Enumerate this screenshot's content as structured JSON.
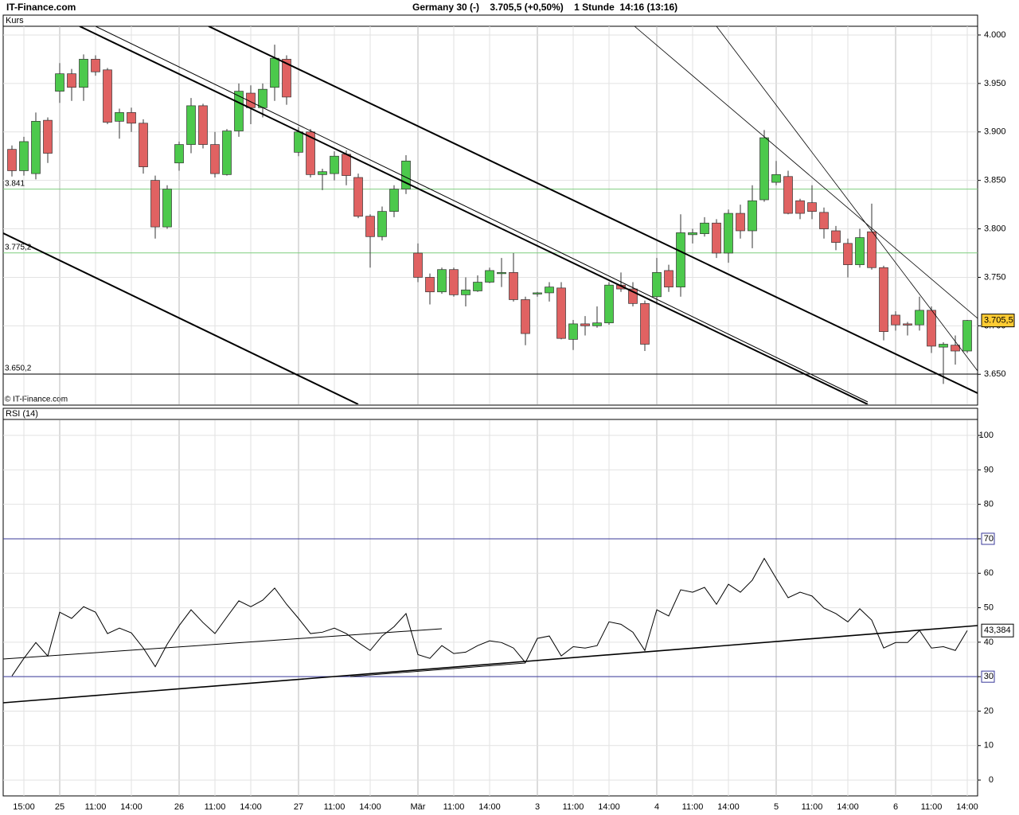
{
  "header": {
    "site": "IT-Finance.com",
    "info": "Germany 30 (-)    3.705,5 (+0,50%)    1 Stunde  14:16 (13:16)"
  },
  "chart_data": [
    {
      "type": "candlestick",
      "title": "Kurs",
      "watermark": "© IT-Finance.com",
      "up_color": "#4cc94c",
      "down_color": "#e06262",
      "open": [
        3882,
        3860,
        3857,
        3912,
        3942,
        3960,
        3946,
        3975,
        3964,
        3911,
        3920,
        3909,
        3850,
        3802,
        3868,
        3887,
        3927,
        3887,
        3856,
        3901,
        3940,
        3925,
        3946,
        3975,
        3879,
        3900,
        3856,
        3857,
        3877,
        3853,
        3813,
        3792,
        3818,
        3841,
        3775,
        3750,
        3735,
        3758,
        3732,
        3736,
        3745,
        3754,
        3755,
        3727,
        3733,
        3734,
        3739,
        3686,
        3702,
        3700,
        3703,
        3742,
        3738,
        3723,
        3730,
        3757,
        3740,
        3794,
        3795,
        3806,
        3775,
        3816,
        3798,
        3830,
        3848,
        3854,
        3829,
        3827,
        3817,
        3798,
        3785,
        3763,
        3797,
        3760,
        3711,
        3702,
        3701,
        3716,
        3678,
        3680,
        3674
      ],
      "high": [
        3886,
        3895,
        3920,
        3915,
        3971,
        3965,
        3980,
        3979,
        3966,
        3924,
        3925,
        3913,
        3855,
        3845,
        3890,
        3935,
        3929,
        3900,
        3903,
        3950,
        3948,
        3950,
        3990,
        3979,
        3905,
        3903,
        3862,
        3880,
        3881,
        3857,
        3815,
        3823,
        3845,
        3876,
        3785,
        3754,
        3760,
        3760,
        3750,
        3752,
        3760,
        3770,
        3775,
        3730,
        3735,
        3745,
        3745,
        3706,
        3710,
        3720,
        3745,
        3755,
        3745,
        3726,
        3770,
        3763,
        3815,
        3800,
        3812,
        3810,
        3820,
        3825,
        3845,
        3902,
        3870,
        3860,
        3831,
        3845,
        3822,
        3803,
        3790,
        3800,
        3826,
        3762,
        3715,
        3704,
        3730,
        3720,
        3683,
        3690,
        3706
      ],
      "low": [
        3854,
        3855,
        3851,
        3868,
        3930,
        3932,
        3932,
        3958,
        3908,
        3893,
        3900,
        3857,
        3790,
        3800,
        3860,
        3878,
        3883,
        3853,
        3855,
        3895,
        3908,
        3915,
        3932,
        3928,
        3875,
        3853,
        3840,
        3850,
        3845,
        3811,
        3760,
        3788,
        3812,
        3836,
        3745,
        3722,
        3733,
        3730,
        3720,
        3735,
        3744,
        3740,
        3725,
        3680,
        3730,
        3725,
        3686,
        3675,
        3690,
        3698,
        3701,
        3735,
        3720,
        3674,
        3722,
        3735,
        3730,
        3785,
        3792,
        3770,
        3765,
        3790,
        3780,
        3828,
        3845,
        3815,
        3810,
        3810,
        3790,
        3778,
        3750,
        3760,
        3758,
        3685,
        3695,
        3690,
        3695,
        3672,
        3640,
        3660,
        3672
      ],
      "close": [
        3860,
        3890,
        3911,
        3878,
        3960,
        3946,
        3975,
        3962,
        3910,
        3920,
        3909,
        3864,
        3802,
        3841,
        3887,
        3927,
        3887,
        3857,
        3901,
        3942,
        3925,
        3944,
        3976,
        3936,
        3900,
        3856,
        3859,
        3875,
        3855,
        3813,
        3792,
        3818,
        3841,
        3870,
        3750,
        3735,
        3758,
        3732,
        3737,
        3745,
        3757,
        3755,
        3727,
        3692,
        3734,
        3740,
        3687,
        3702,
        3700,
        3703,
        3742,
        3738,
        3723,
        3681,
        3755,
        3740,
        3796,
        3796,
        3806,
        3775,
        3816,
        3798,
        3829,
        3894,
        3856,
        3816,
        3816,
        3818,
        3800,
        3786,
        3763,
        3791,
        3760,
        3694,
        3701,
        3701,
        3716,
        3679,
        3681,
        3674,
        3705.5
      ],
      "last_label": "3.705,5",
      "last_label_color": "#ffcc33",
      "levels": [
        {
          "value": 3841,
          "label": "3.841",
          "color": "#7fce7f"
        },
        {
          "value": 3775.2,
          "label": "3.775,2",
          "color": "#7fce7f"
        },
        {
          "value": 3650.2,
          "label": "3.650,2",
          "color": "#000000"
        }
      ],
      "ylim": [
        3619,
        4009
      ],
      "yticks": [
        {
          "value": 4000,
          "label": "4.000"
        },
        {
          "value": 3950,
          "label": "3.950"
        },
        {
          "value": 3900,
          "label": "3.900"
        },
        {
          "value": 3850,
          "label": "3.850"
        },
        {
          "value": 3800,
          "label": "3.800"
        },
        {
          "value": 3750,
          "label": "3.750"
        },
        {
          "value": 3700,
          "label": "3.700"
        },
        {
          "value": 3650,
          "label": "3.650"
        }
      ],
      "grid": true
    },
    {
      "type": "line",
      "title": "RSI (14)",
      "color": "#000000",
      "categories": [
        null,
        "15:00",
        null,
        null,
        "25",
        null,
        null,
        "11:00",
        null,
        null,
        "14:00",
        null,
        null,
        null,
        "26",
        null,
        null,
        "11:00",
        null,
        null,
        "14:00",
        null,
        null,
        null,
        "27",
        null,
        null,
        "11:00",
        null,
        null,
        "14:00",
        null,
        null,
        null,
        "Mär",
        null,
        null,
        "11:00",
        null,
        null,
        "14:00",
        null,
        null,
        null,
        "3",
        null,
        null,
        "11:00",
        null,
        null,
        "14:00",
        null,
        null,
        null,
        "4",
        null,
        null,
        "11:00",
        null,
        null,
        "14:00",
        null,
        null,
        null,
        "5",
        null,
        null,
        "11:00",
        null,
        null,
        "14:00",
        null,
        null,
        null,
        "6",
        null,
        null,
        "11:00",
        null,
        null,
        "14:00"
      ],
      "values": [
        30.2,
        35.3,
        39.9,
        36,
        48.7,
        46.9,
        50.3,
        48.7,
        42.5,
        44.1,
        42.7,
        38.3,
        32.9,
        39.4,
        44.8,
        49.4,
        45.7,
        42.5,
        47.3,
        52,
        50.3,
        52.2,
        55.7,
        51,
        46.9,
        42.5,
        42.9,
        44.1,
        42.5,
        39.9,
        37.6,
        41.8,
        44.5,
        48.3,
        36.4,
        35.3,
        39,
        36.7,
        37.1,
        39,
        40.4,
        39.9,
        38.3,
        34.1,
        41.1,
        41.8,
        36,
        38.7,
        38.3,
        39,
        45.9,
        45.2,
        42.9,
        37.6,
        49.4,
        47.6,
        55.2,
        54.5,
        55.9,
        51,
        56.8,
        54.5,
        58,
        64.3,
        58.5,
        52.9,
        54.5,
        53.4,
        49.9,
        48.3,
        45.9,
        49.7,
        46.4,
        38.3,
        39.9,
        39.9,
        43.4,
        38.3,
        38.7,
        37.6,
        43.384
      ],
      "last_label": "43,384",
      "bands": [
        70,
        30
      ],
      "band_color": "#3a3a9a",
      "ylim": [
        -4.6,
        104.4
      ],
      "yticks": [
        0,
        10,
        20,
        30,
        40,
        50,
        60,
        70,
        80,
        90,
        100
      ],
      "grid": true
    }
  ]
}
